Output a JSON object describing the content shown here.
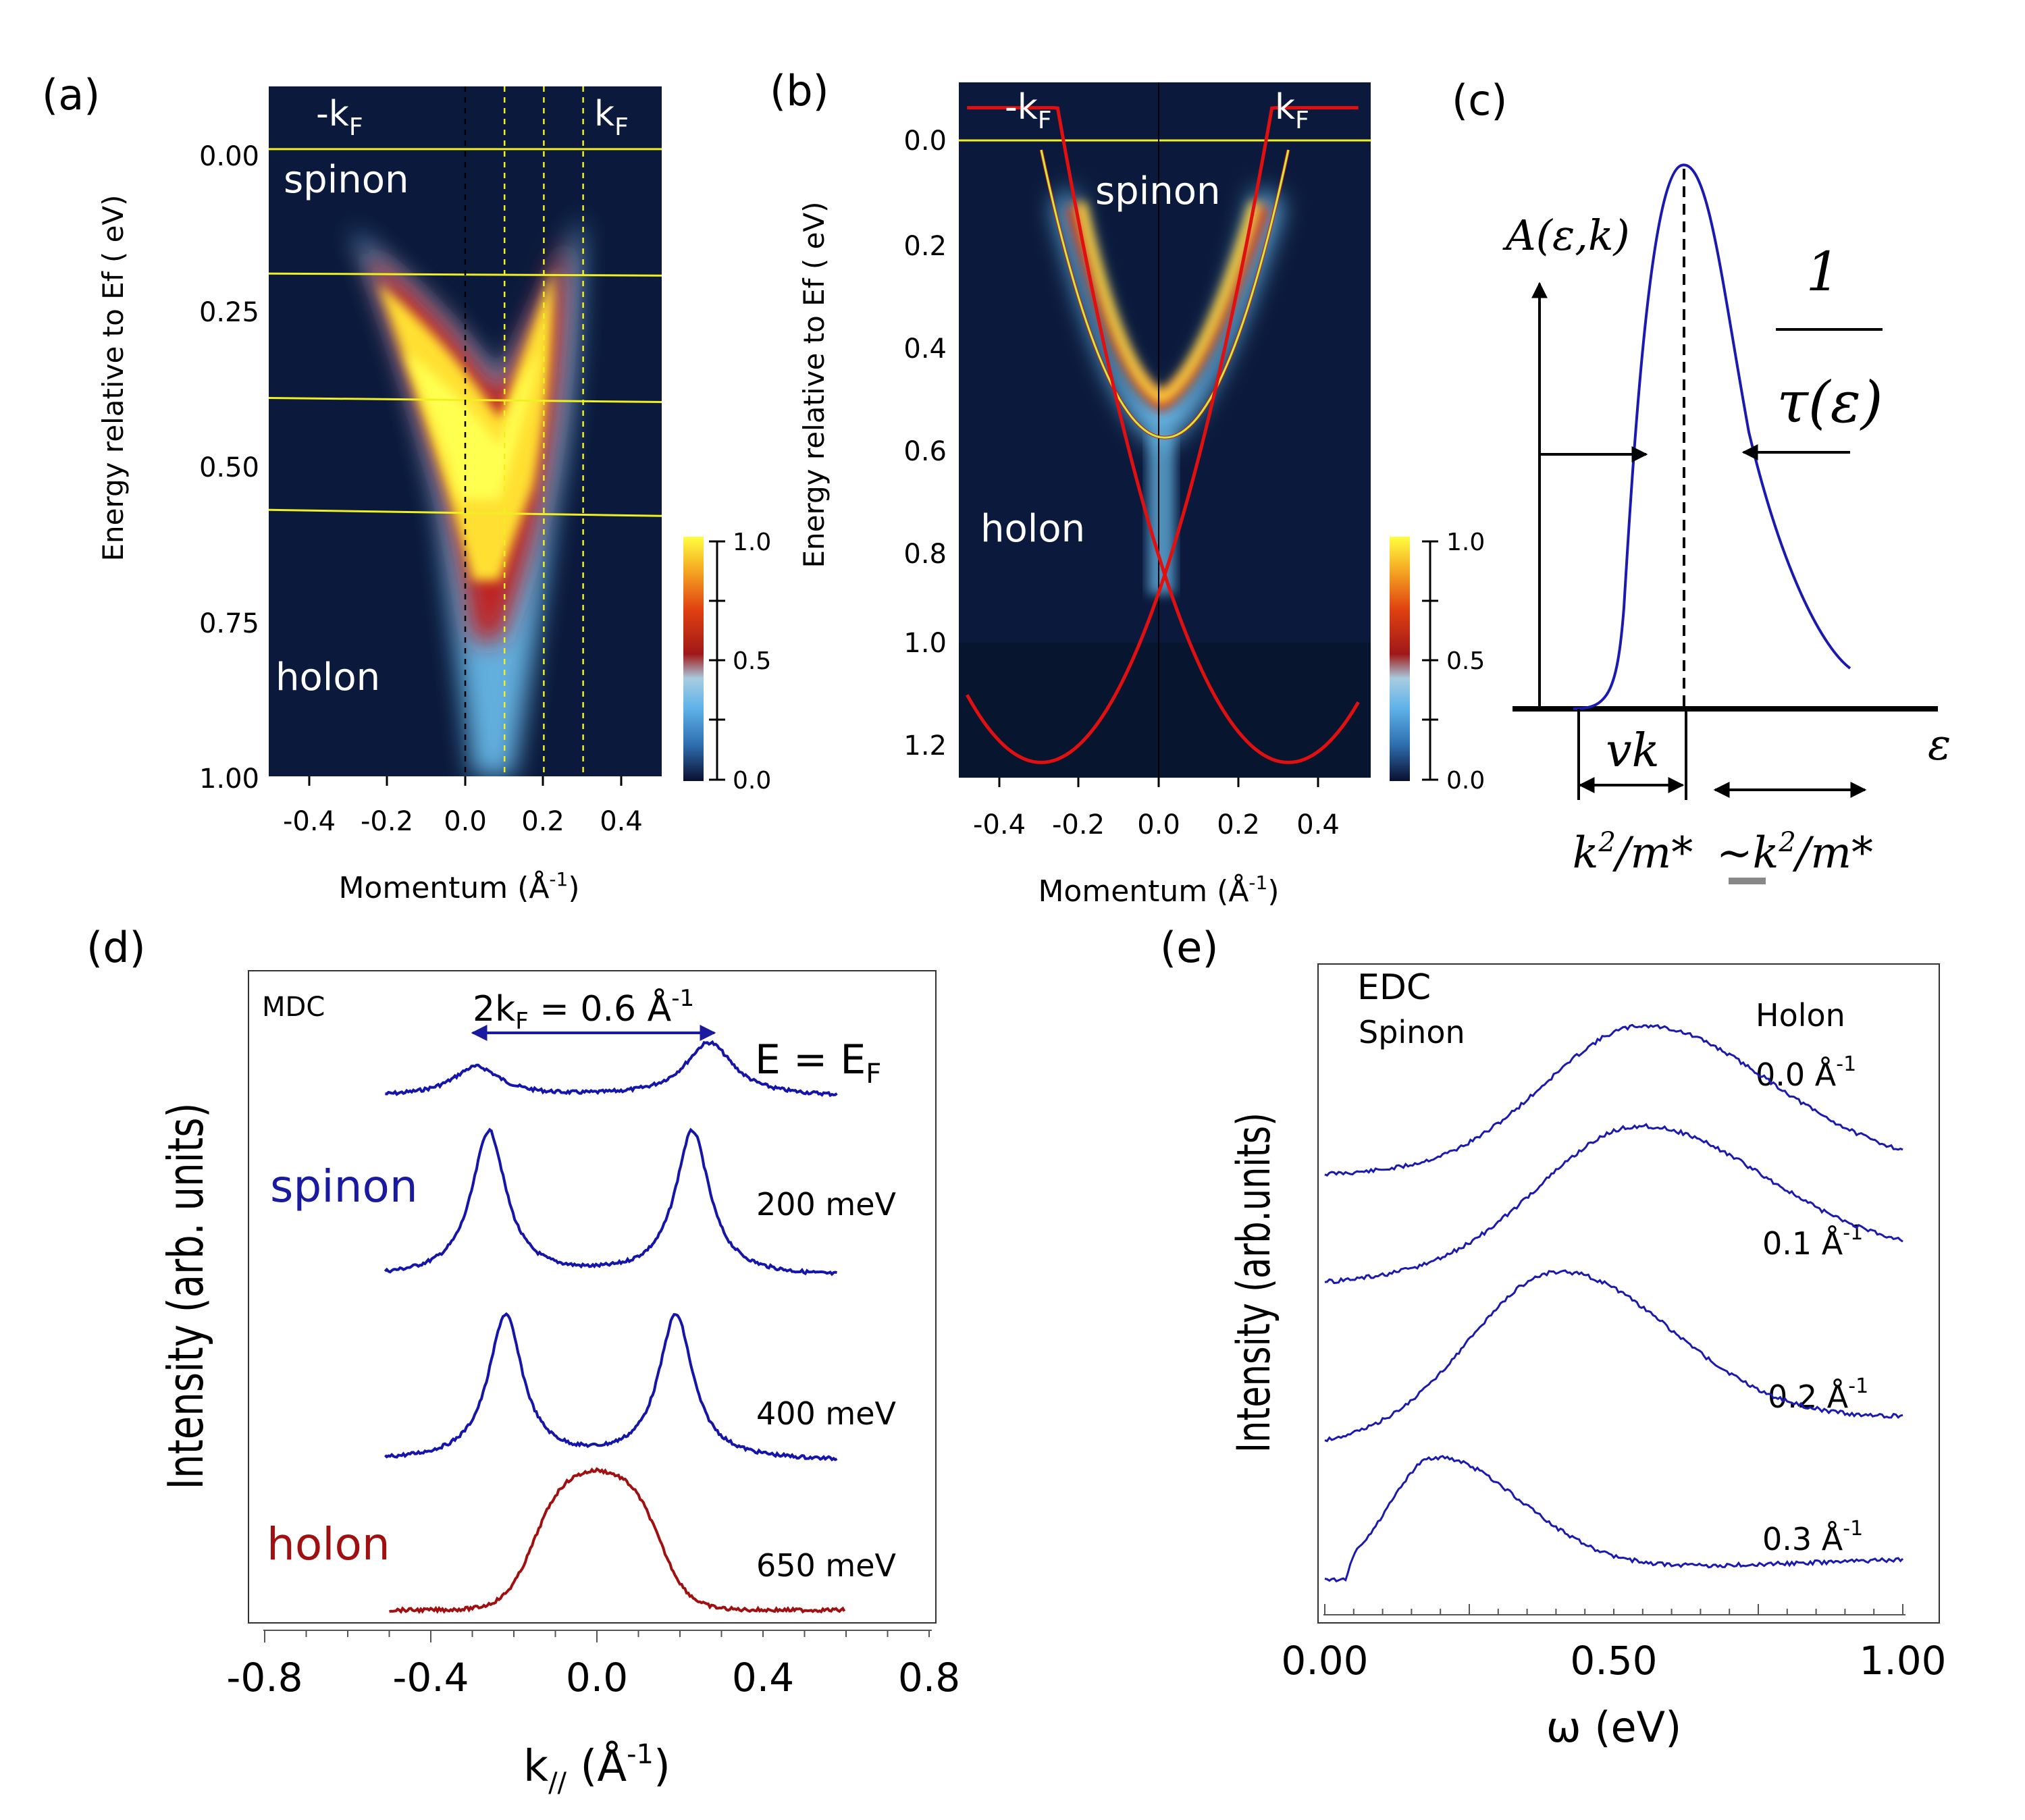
{
  "panels": {
    "a": {
      "label": "(a)",
      "ylabel": "Energy relative to Ef ( eV)",
      "xlabel": "Momentum (Å",
      "xlabel_exp": "-1",
      "xlabel_close": ")",
      "yticks": [
        "0.00",
        "0.25",
        "0.50",
        "0.75",
        "1.00"
      ],
      "xticks": [
        "-0.4",
        "-0.2",
        "0.0",
        "0.2",
        "0.4"
      ],
      "kf_left": "-k",
      "kf_right": "k",
      "kf_sub": "F",
      "spinon": "spinon",
      "holon": "holon",
      "colorbar_ticks": [
        "1.0",
        "0.5",
        "0.0"
      ]
    },
    "b": {
      "label": "(b)",
      "ylabel": "Energy relative to Ef ( eV)",
      "xlabel": "Momentum (Å",
      "xlabel_exp": "-1",
      "xlabel_close": ")",
      "yticks": [
        "0.0",
        "0.2",
        "0.4",
        "0.6",
        "0.8",
        "1.0",
        "1.2"
      ],
      "xticks": [
        "-0.4",
        "-0.2",
        "0.0",
        "0.2",
        "0.4"
      ],
      "kf_left": "-k",
      "kf_right": "k",
      "kf_sub": "F",
      "spinon": "spinon",
      "holon": "holon",
      "colorbar_ticks": [
        "1.0",
        "0.5",
        "0.0"
      ]
    },
    "c": {
      "label": "(c)",
      "yaxis": "A(ε,k)",
      "frac_num": "1",
      "frac_den": "τ(ε)",
      "xaxis": "ε",
      "vk": "vk",
      "k2m": "k",
      "k2m_sup": "2",
      "k2m_tail": "/m*",
      "k2m_approx": "~k",
      "k2m_approx_sup": "2",
      "k2m_approx_tail": "/m*"
    },
    "d": {
      "label": "(d)",
      "ylabel": "Intensity (arb. units)",
      "xlabel": "k",
      "xlabel_sub": "//",
      "xlabel_unit": " (Å",
      "xlabel_exp": "-1",
      "xlabel_close": ")",
      "mdc": "MDC",
      "arrow_label": "2k",
      "arrow_sub": "F",
      "arrow_value": " = 0.6 Å",
      "arrow_exp": "-1",
      "energy_label": "E =  E",
      "energy_sub": "F",
      "spinon": "spinon",
      "holon": "holon",
      "curve_labels": [
        "200 meV",
        "400 meV",
        "650 meV"
      ],
      "xticks": [
        "-0.8",
        "-0.4",
        "0.0",
        "0.4",
        "0.8"
      ]
    },
    "e": {
      "label": "(e)",
      "ylabel": "Intensity (arb.units)",
      "xlabel": "ω (eV)",
      "edc": "EDC",
      "spinon": "Spinon",
      "holon": "Holon",
      "curve_labels": [
        "0.0 Å",
        "0.1 Å",
        "0.2 Å",
        "0.3 Å"
      ],
      "curve_exp": "-1",
      "xticks": [
        "0.00",
        "0.50",
        "1.00"
      ]
    }
  },
  "chart_data": [
    {
      "type": "heatmap",
      "panel": "a",
      "xlabel": "Momentum (Å-1)",
      "ylabel": "Energy relative to Ef ( eV)",
      "xlim": [
        -0.5,
        0.5
      ],
      "ylim": [
        1.0,
        -0.1
      ],
      "xticks": [
        -0.4,
        -0.2,
        0.0,
        0.2,
        0.4
      ],
      "yticks": [
        0.0,
        0.25,
        0.5,
        0.75,
        1.0
      ],
      "horizontal_cuts_eV": [
        0.0,
        0.2,
        0.4,
        0.58
      ],
      "vertical_cuts_k": [
        0.0,
        0.1,
        0.2,
        0.3
      ],
      "band_maxima": [
        {
          "k": -0.25,
          "E": 0.12
        },
        {
          "k": 0.25,
          "E": 0.08
        }
      ],
      "colorbar": {
        "min": 0.0,
        "max": 1.0,
        "ticks": [
          0.0,
          0.5,
          1.0
        ]
      }
    },
    {
      "type": "heatmap",
      "panel": "b",
      "xlabel": "Momentum (Å-1)",
      "ylabel": "Energy relative to Ef ( eV)",
      "xlim": [
        -0.5,
        0.5
      ],
      "ylim": [
        1.27,
        -0.1
      ],
      "xticks": [
        -0.4,
        -0.2,
        0.0,
        0.2,
        0.4
      ],
      "yticks": [
        0.0,
        0.2,
        0.4,
        0.6,
        0.8,
        1.0,
        1.2
      ],
      "spinon_fit": {
        "k": [
          -0.3,
          -0.2,
          -0.1,
          0.0,
          0.1,
          0.2,
          0.3
        ],
        "E": [
          0.03,
          0.34,
          0.53,
          0.6,
          0.53,
          0.34,
          0.03
        ]
      },
      "holon_crossing": {
        "k": 0.0,
        "E": 0.87
      },
      "holon_branch_minima": [
        {
          "k": -0.3,
          "E": 1.24
        },
        {
          "k": 0.3,
          "E": 1.24
        }
      ],
      "colorbar": {
        "min": 0.0,
        "max": 1.0,
        "ticks": [
          0.0,
          0.5,
          1.0
        ]
      }
    },
    {
      "type": "line",
      "panel": "c",
      "description_terms": [
        "A(ε,k)",
        "1/τ(ε)",
        "vk",
        "k2/m*",
        "~k2/m*",
        "ε"
      ],
      "peak_x": 0.0,
      "series": [
        {
          "name": "A(ε,k)",
          "shape": "asymmetric peak, sharp rise and long tail"
        }
      ]
    },
    {
      "type": "line",
      "panel": "d",
      "title": "MDC",
      "xlabel": "k// (Å-1)",
      "ylabel": "Intensity (arb. units)",
      "xlim": [
        -0.8,
        0.8
      ],
      "xticks": [
        -0.8,
        -0.4,
        0.0,
        0.4,
        0.8
      ],
      "series": [
        {
          "name": "E = EF",
          "peaks_k": [
            -0.29,
            0.27
          ],
          "color": "#1515aa"
        },
        {
          "name": "200 meV",
          "peaks_k": [
            -0.26,
            0.23
          ],
          "color": "#1515aa"
        },
        {
          "name": "400 meV",
          "peaks_k": [
            -0.22,
            0.19
          ],
          "color": "#1515aa"
        },
        {
          "name": "650 meV",
          "peaks_k": [
            0.0
          ],
          "color": "#a01010"
        }
      ]
    },
    {
      "type": "line",
      "panel": "e",
      "title": "EDC",
      "xlabel": "ω (eV)",
      "ylabel": "Intensity (arb.units)",
      "xlim": [
        0.0,
        1.0
      ],
      "xticks": [
        0.0,
        0.5,
        1.0
      ],
      "series": [
        {
          "name": "0.0 Å-1",
          "peak_eV": 0.55
        },
        {
          "name": "0.1 Å-1",
          "peak_eV": 0.54
        },
        {
          "name": "0.2 Å-1",
          "peak_eV": 0.4
        },
        {
          "name": "0.3 Å-1",
          "peak_eV": 0.19
        }
      ]
    }
  ]
}
